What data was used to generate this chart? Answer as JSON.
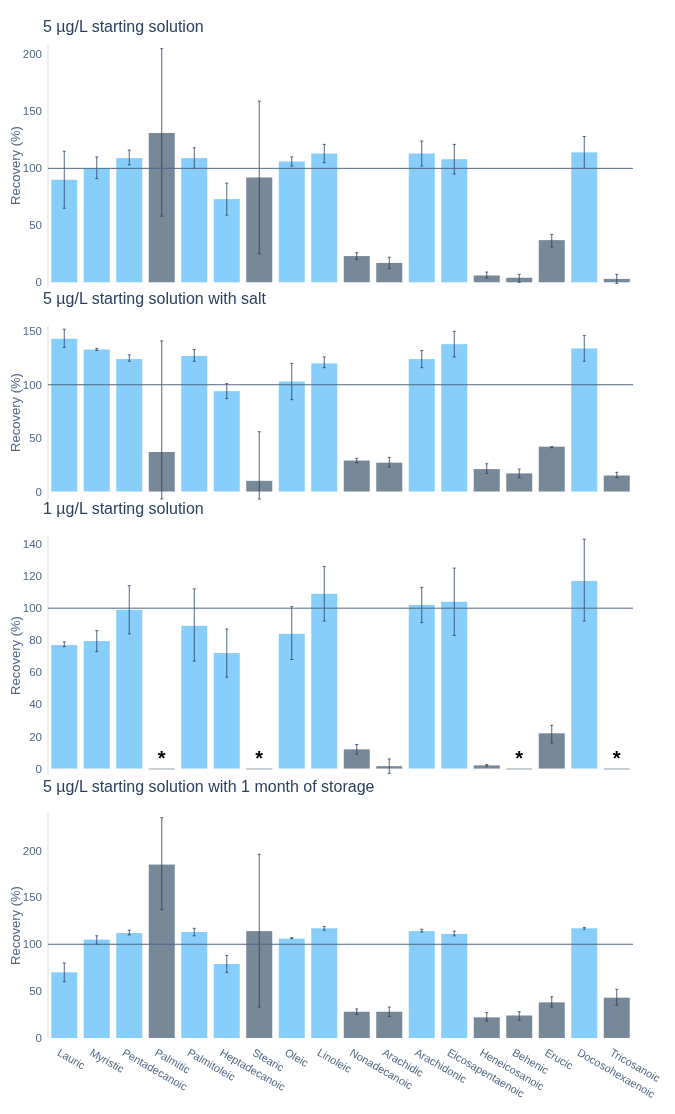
{
  "chart_data": [
    {
      "type": "bar",
      "title": "5 µg/L starting solution",
      "ylabel": "Recovery (%)",
      "tick_labels": "y",
      "categories": [
        "Lauric",
        "Myristic",
        "Pentadecanoic",
        "Palmitic",
        "Palmitoleic",
        "Heptadecanoic",
        "Stearic",
        "Oleic",
        "Linoleic",
        "Nonadecanoic",
        "Arachidic",
        "Arachidonic",
        "Eicosapentaenoic",
        "Heneicosanoic",
        "Behenic",
        "Erucic",
        "Docosohexaenoic",
        "Tricosanoic"
      ],
      "values": [
        90,
        100,
        109,
        131,
        109,
        73,
        92,
        106,
        113,
        23,
        17,
        113,
        108,
        6,
        4,
        37,
        114,
        3
      ],
      "errors": [
        [
          65,
          115
        ],
        [
          91,
          110
        ],
        [
          103,
          116
        ],
        [
          58,
          205
        ],
        [
          100,
          118
        ],
        [
          59,
          87
        ],
        [
          25,
          159
        ],
        [
          102,
          110
        ],
        [
          105,
          121
        ],
        [
          20,
          26
        ],
        [
          12,
          22
        ],
        [
          102,
          124
        ],
        [
          95,
          121
        ],
        [
          4,
          9
        ],
        [
          0,
          7
        ],
        [
          31,
          42
        ],
        [
          100,
          128
        ],
        [
          -1,
          7
        ]
      ],
      "colors": [
        "#87cefa",
        "#87cefa",
        "#87cefa",
        "#778899",
        "#87cefa",
        "#87cefa",
        "#778899",
        "#87cefa",
        "#87cefa",
        "#778899",
        "#778899",
        "#87cefa",
        "#87cefa",
        "#778899",
        "#778899",
        "#778899",
        "#87cefa",
        "#778899"
      ],
      "ylim": [
        -5,
        210
      ],
      "yticks": [
        0,
        50,
        100,
        150,
        200
      ],
      "ref_lines": [
        {
          "axis": "y",
          "value": 100,
          "color": "#506784"
        }
      ]
    },
    {
      "type": "bar",
      "title": "5 µg/L starting solution with salt",
      "ylabel": "Recovery (%)",
      "tick_labels": "y",
      "categories": [
        "Lauric",
        "Myristic",
        "Pentadecanoic",
        "Palmitic",
        "Palmitoleic",
        "Heptadecanoic",
        "Stearic",
        "Oleic",
        "Linoleic",
        "Nonadecanoic",
        "Arachidic",
        "Arachidonic",
        "Eicosapentaenoic",
        "Heneicosanoic",
        "Behenic",
        "Erucic",
        "Docosohexaenoic",
        "Tricosanoic"
      ],
      "values": [
        143,
        133,
        124,
        37,
        127,
        94,
        10,
        103,
        120,
        29,
        27,
        124,
        138,
        21,
        17,
        42,
        134,
        15
      ],
      "errors": [
        [
          135,
          152
        ],
        [
          132,
          134
        ],
        [
          122,
          128
        ],
        [
          -7,
          141
        ],
        [
          122,
          133
        ],
        [
          87,
          101
        ],
        [
          -7,
          56
        ],
        [
          86,
          120
        ],
        [
          116,
          126
        ],
        [
          27,
          31
        ],
        [
          23,
          32
        ],
        [
          116,
          132
        ],
        [
          126,
          150
        ],
        [
          17,
          26
        ],
        [
          13,
          21
        ],
        [
          41,
          42
        ],
        [
          122,
          146
        ],
        [
          13,
          18
        ]
      ],
      "colors": [
        "#87cefa",
        "#87cefa",
        "#87cefa",
        "#778899",
        "#87cefa",
        "#87cefa",
        "#778899",
        "#87cefa",
        "#87cefa",
        "#778899",
        "#778899",
        "#87cefa",
        "#87cefa",
        "#778899",
        "#778899",
        "#778899",
        "#87cefa",
        "#778899"
      ],
      "ylim": [
        -7,
        155
      ],
      "yticks": [
        0,
        50,
        100,
        150
      ],
      "ref_lines": [
        {
          "axis": "y",
          "value": 100,
          "color": "#506784"
        }
      ]
    },
    {
      "type": "bar",
      "title": "1 µg/L starting solution",
      "ylabel": "Recovery (%)",
      "tick_labels": "y",
      "categories": [
        "Lauric",
        "Myristic",
        "Pentadecanoic",
        "Palmitic",
        "Palmitoleic",
        "Heptadecanoic",
        "Stearic",
        "Oleic",
        "Linoleic",
        "Nonadecanoic",
        "Arachidic",
        "Arachidonic",
        "Eicosapentaenoic",
        "Heneicosanoic",
        "Behenic",
        "Erucic",
        "Docosohexaenoic",
        "Tricosanoic"
      ],
      "values": [
        77,
        79.5,
        99,
        0,
        89,
        72,
        0,
        84,
        109,
        12,
        1.5,
        102,
        104,
        2,
        0,
        22,
        117,
        0
      ],
      "errors": [
        [
          76,
          79
        ],
        [
          73,
          86
        ],
        [
          84,
          114
        ],
        null,
        [
          67,
          112
        ],
        [
          57,
          87
        ],
        null,
        [
          68,
          101
        ],
        [
          92,
          126
        ],
        [
          9,
          15
        ],
        [
          -3,
          6
        ],
        [
          91,
          113
        ],
        [
          83,
          125
        ],
        [
          1.5,
          2.5
        ],
        null,
        [
          16,
          27
        ],
        [
          92,
          143
        ],
        null
      ],
      "colors": [
        "#87cefa",
        "#87cefa",
        "#87cefa",
        "#778899",
        "#87cefa",
        "#87cefa",
        "#778899",
        "#87cefa",
        "#87cefa",
        "#778899",
        "#778899",
        "#87cefa",
        "#87cefa",
        "#778899",
        "#778899",
        "#778899",
        "#87cefa",
        "#778899"
      ],
      "ylim": [
        -4,
        145
      ],
      "yticks": [
        0,
        20,
        40,
        60,
        80,
        100,
        120,
        140
      ],
      "ref_lines": [
        {
          "axis": "y",
          "value": 100,
          "color": "#506784"
        }
      ],
      "annotations": [
        {
          "text": "*",
          "x": "Palmitic",
          "y": 0
        },
        {
          "text": "*",
          "x": "Stearic",
          "y": 0
        },
        {
          "text": "*",
          "x": "Behenic",
          "y": 0
        },
        {
          "text": "*",
          "x": "Tricosanoic",
          "y": 0
        }
      ]
    },
    {
      "type": "bar",
      "title": "5 µg/L starting solution with 1 month of storage",
      "ylabel": "Recovery (%)",
      "categories": [
        "Lauric",
        "Myristic",
        "Pentadecanoic",
        "Palmitic",
        "Palmitoleic",
        "Heptadecanoic",
        "Stearic",
        "Oleic",
        "Linoleic",
        "Nonadecanoic",
        "Arachidic",
        "Arachidonic",
        "Eicosapentaenoic",
        "Heneicosanoic",
        "Behenic",
        "Erucic",
        "Docosohexaenoic",
        "Tricosanoic"
      ],
      "values": [
        70,
        105,
        112,
        185,
        113,
        79,
        114,
        106,
        117,
        28,
        28,
        114,
        111,
        22,
        24,
        38,
        117,
        43
      ],
      "errors": [
        [
          60,
          80
        ],
        [
          100,
          109
        ],
        [
          110,
          115
        ],
        [
          137,
          235
        ],
        [
          109,
          117
        ],
        [
          70,
          88
        ],
        [
          33,
          196
        ],
        [
          106,
          107
        ],
        [
          115,
          119
        ],
        [
          25,
          31
        ],
        [
          23,
          33
        ],
        [
          113,
          116
        ],
        [
          109,
          114
        ],
        [
          18,
          27
        ],
        [
          19,
          28
        ],
        [
          33,
          44
        ],
        [
          116,
          118
        ],
        [
          35,
          52
        ]
      ],
      "colors": [
        "#87cefa",
        "#87cefa",
        "#87cefa",
        "#778899",
        "#87cefa",
        "#87cefa",
        "#778899",
        "#87cefa",
        "#87cefa",
        "#778899",
        "#778899",
        "#87cefa",
        "#87cefa",
        "#778899",
        "#778899",
        "#778899",
        "#87cefa",
        "#778899"
      ],
      "ylim": [
        0,
        240
      ],
      "yticks": [
        0,
        50,
        100,
        150,
        200
      ],
      "ref_lines": [
        {
          "axis": "y",
          "value": 100,
          "color": "#506784"
        }
      ]
    }
  ]
}
